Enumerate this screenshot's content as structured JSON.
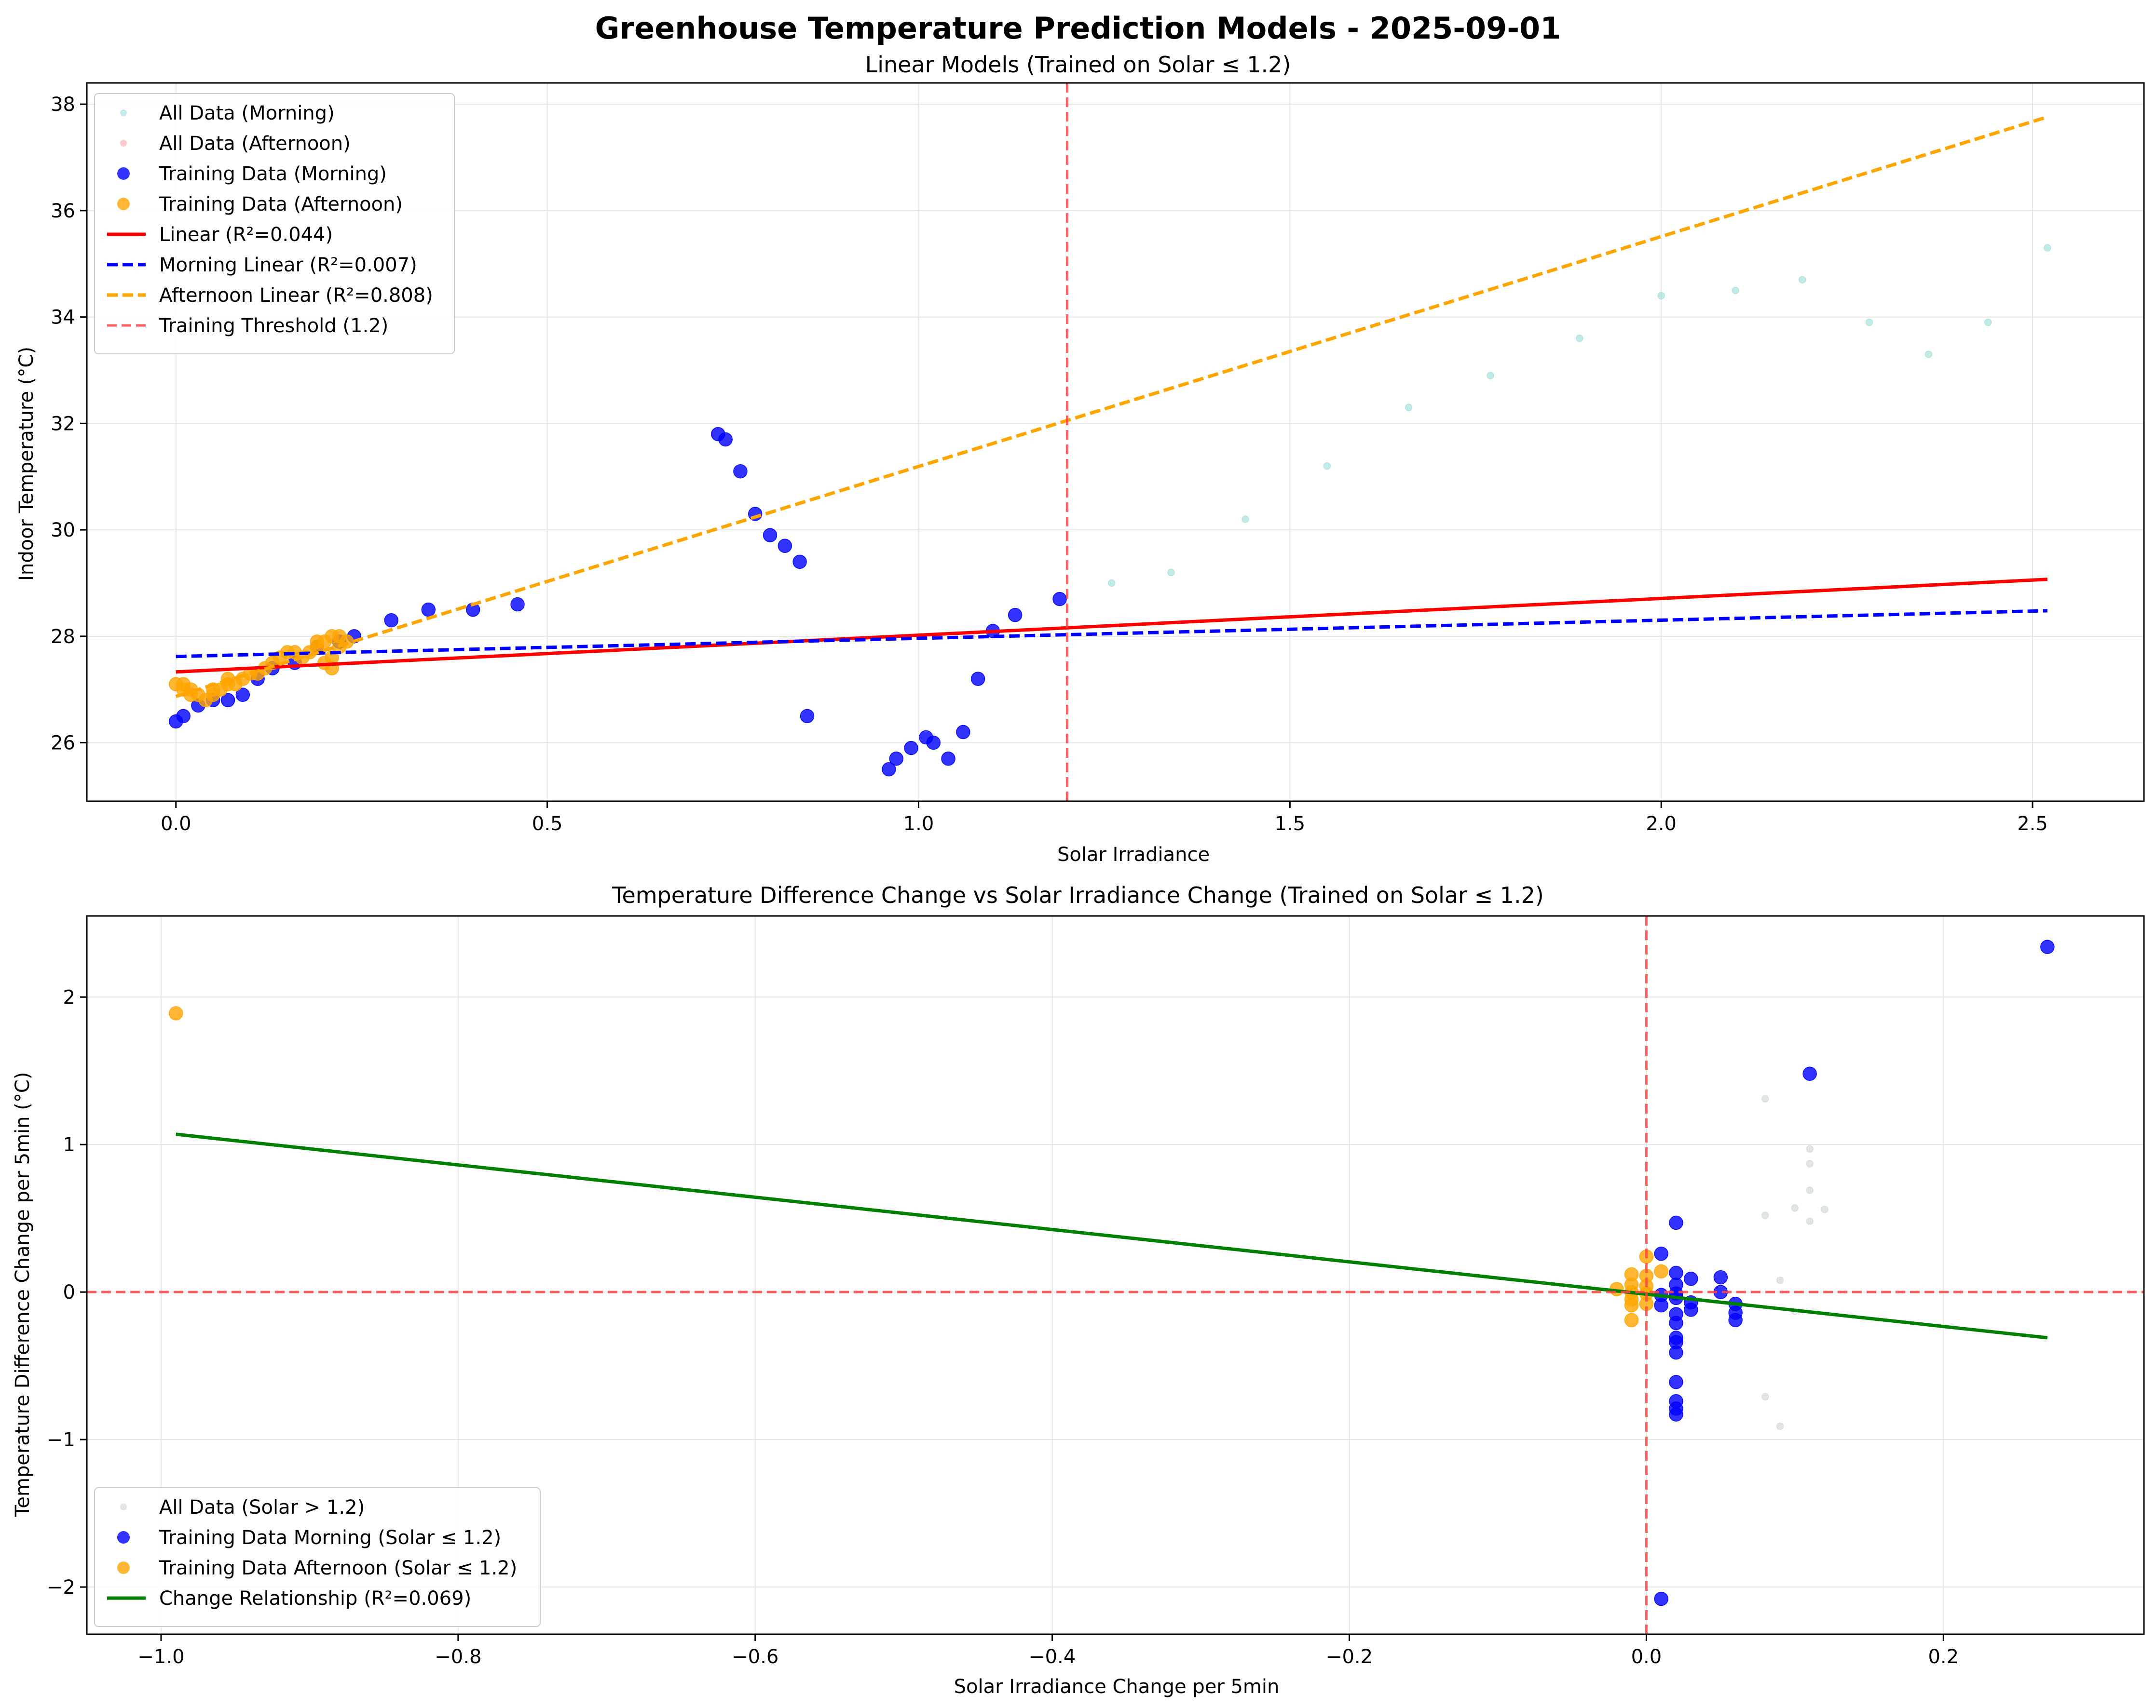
{
  "figure": {
    "title": "Greenhouse Temperature Prediction Models - 2025-09-01"
  },
  "colors": {
    "morning_training": "#0000ff",
    "afternoon_training": "#ffa500",
    "morning_all": "#8fd8d2",
    "afternoon_all": "#f0a0a0",
    "all_solar_gt": "#c8d0d0",
    "linear": "#ff0000",
    "threshold": "#ff4444",
    "change_fit": "#008000",
    "grid": "#e6e6e6"
  },
  "chart_data": [
    {
      "type": "scatter",
      "title": "Linear Models (Trained on Solar ≤ 1.2)",
      "xlabel": "Solar Irradiance",
      "ylabel": "Indoor Temperature (°C)",
      "xlim": [
        -0.12,
        2.65
      ],
      "ylim": [
        24.9,
        38.4
      ],
      "xticks": [
        0.0,
        0.5,
        1.0,
        1.5,
        2.0,
        2.5
      ],
      "xtick_labels": [
        "0.0",
        "0.5",
        "1.0",
        "1.5",
        "2.0",
        "2.5"
      ],
      "yticks": [
        26,
        28,
        30,
        32,
        34,
        36,
        38
      ],
      "ytick_labels": [
        "26",
        "28",
        "30",
        "32",
        "34",
        "36",
        "38"
      ],
      "grid": true,
      "legend_position": "upper-left",
      "series": [
        {
          "name": "All Data (Morning)",
          "kind": "scatter-small",
          "color": "#8fd8d2",
          "points": [
            [
              1.26,
              29.0
            ],
            [
              1.34,
              29.2
            ],
            [
              1.44,
              30.2
            ],
            [
              1.55,
              31.2
            ],
            [
              1.66,
              32.3
            ],
            [
              1.77,
              32.9
            ],
            [
              1.89,
              33.6
            ],
            [
              2.0,
              34.4
            ],
            [
              2.1,
              34.5
            ],
            [
              2.19,
              34.7
            ],
            [
              2.28,
              33.9
            ],
            [
              2.36,
              33.3
            ],
            [
              2.44,
              33.9
            ],
            [
              2.52,
              35.3
            ]
          ]
        },
        {
          "name": "All Data (Afternoon)",
          "kind": "scatter-small",
          "color": "#f0a0a0",
          "points": []
        },
        {
          "name": "Training Data (Morning)",
          "kind": "scatter",
          "color": "#0000ff",
          "points": [
            [
              0.0,
              26.4
            ],
            [
              0.01,
              26.5
            ],
            [
              0.03,
              26.7
            ],
            [
              0.05,
              26.8
            ],
            [
              0.07,
              26.8
            ],
            [
              0.09,
              26.9
            ],
            [
              0.11,
              27.2
            ],
            [
              0.13,
              27.4
            ],
            [
              0.16,
              27.5
            ],
            [
              0.19,
              27.8
            ],
            [
              0.22,
              27.9
            ],
            [
              0.24,
              28.0
            ],
            [
              0.29,
              28.3
            ],
            [
              0.34,
              28.5
            ],
            [
              0.4,
              28.5
            ],
            [
              0.46,
              28.6
            ],
            [
              0.73,
              31.8
            ],
            [
              0.74,
              31.7
            ],
            [
              0.76,
              31.1
            ],
            [
              0.78,
              30.3
            ],
            [
              0.8,
              29.9
            ],
            [
              0.82,
              29.7
            ],
            [
              0.84,
              29.4
            ],
            [
              0.85,
              26.5
            ],
            [
              0.96,
              25.5
            ],
            [
              0.97,
              25.7
            ],
            [
              0.99,
              25.9
            ],
            [
              1.01,
              26.1
            ],
            [
              1.02,
              26.0
            ],
            [
              1.04,
              25.7
            ],
            [
              1.06,
              26.2
            ],
            [
              1.08,
              27.2
            ],
            [
              1.1,
              28.1
            ],
            [
              1.13,
              28.4
            ],
            [
              1.19,
              28.7
            ]
          ]
        },
        {
          "name": "Training Data (Afternoon)",
          "kind": "scatter",
          "color": "#ffa500",
          "points": [
            [
              0.0,
              27.1
            ],
            [
              0.01,
              27.1
            ],
            [
              0.01,
              27.0
            ],
            [
              0.02,
              27.0
            ],
            [
              0.02,
              26.9
            ],
            [
              0.03,
              26.9
            ],
            [
              0.04,
              26.8
            ],
            [
              0.05,
              26.9
            ],
            [
              0.05,
              27.0
            ],
            [
              0.06,
              27.0
            ],
            [
              0.07,
              27.1
            ],
            [
              0.07,
              27.2
            ],
            [
              0.08,
              27.1
            ],
            [
              0.09,
              27.2
            ],
            [
              0.1,
              27.3
            ],
            [
              0.11,
              27.3
            ],
            [
              0.12,
              27.4
            ],
            [
              0.13,
              27.5
            ],
            [
              0.14,
              27.6
            ],
            [
              0.15,
              27.7
            ],
            [
              0.16,
              27.7
            ],
            [
              0.17,
              27.6
            ],
            [
              0.18,
              27.7
            ],
            [
              0.19,
              27.8
            ],
            [
              0.19,
              27.9
            ],
            [
              0.2,
              27.9
            ],
            [
              0.2,
              27.5
            ],
            [
              0.21,
              27.4
            ],
            [
              0.21,
              27.6
            ],
            [
              0.21,
              28.0
            ],
            [
              0.22,
              27.8
            ],
            [
              0.22,
              28.0
            ],
            [
              0.23,
              27.9
            ]
          ]
        },
        {
          "name": "Linear (R²=0.044)",
          "kind": "line",
          "color": "#ff0000",
          "dash": "solid",
          "points": [
            [
              0.0,
              27.33
            ],
            [
              2.52,
              29.07
            ]
          ]
        },
        {
          "name": "Morning Linear (R²=0.007)",
          "kind": "line",
          "color": "#0000ff",
          "dash": "dashed",
          "points": [
            [
              0.0,
              27.62
            ],
            [
              2.52,
              28.48
            ]
          ]
        },
        {
          "name": "Afternoon Linear (R²=0.808)",
          "kind": "line",
          "color": "#ffa500",
          "dash": "dashed",
          "points": [
            [
              0.0,
              26.87
            ],
            [
              2.52,
              37.76
            ]
          ]
        },
        {
          "name": "Training Threshold (1.2)",
          "kind": "vline",
          "color": "#ff4444",
          "dash": "dashed",
          "x": 1.2
        }
      ]
    },
    {
      "type": "scatter",
      "title": "Temperature Difference Change vs Solar Irradiance Change (Trained on Solar ≤ 1.2)",
      "xlabel": "Solar Irradiance Change per 5min",
      "ylabel": "Temperature Difference Change per 5min (°C)",
      "xlim": [
        -1.05,
        0.335
      ],
      "ylim": [
        -2.32,
        2.55
      ],
      "xticks": [
        -1.0,
        -0.8,
        -0.6,
        -0.4,
        -0.2,
        0.0,
        0.2
      ],
      "xtick_labels": [
        "−1.0",
        "−0.8",
        "−0.6",
        "−0.4",
        "−0.2",
        "0.0",
        "0.2"
      ],
      "yticks": [
        -2,
        -1,
        0,
        1,
        2
      ],
      "ytick_labels": [
        "−2",
        "−1",
        "0",
        "1",
        "2"
      ],
      "grid": true,
      "legend_position": "lower-left",
      "series": [
        {
          "name": "All Data (Solar > 1.2)",
          "kind": "scatter-small",
          "color": "#c8d0d0",
          "points": [
            [
              0.08,
              1.31
            ],
            [
              0.11,
              0.97
            ],
            [
              0.11,
              0.87
            ],
            [
              0.11,
              0.69
            ],
            [
              0.1,
              0.57
            ],
            [
              0.12,
              0.56
            ],
            [
              0.08,
              0.52
            ],
            [
              0.11,
              0.48
            ],
            [
              0.09,
              0.08
            ],
            [
              0.1,
              -0.13
            ],
            [
              0.08,
              -0.71
            ],
            [
              0.09,
              -0.91
            ]
          ]
        },
        {
          "name": "Training Data Morning (Solar ≤ 1.2)",
          "kind": "scatter",
          "color": "#0000ff",
          "points": [
            [
              0.27,
              2.34
            ],
            [
              0.11,
              1.48
            ],
            [
              0.02,
              0.47
            ],
            [
              0.01,
              0.26
            ],
            [
              0.02,
              0.13
            ],
            [
              0.03,
              0.09
            ],
            [
              0.05,
              0.1
            ],
            [
              0.02,
              0.05
            ],
            [
              0.05,
              0.0
            ],
            [
              0.01,
              -0.02
            ],
            [
              0.02,
              -0.04
            ],
            [
              0.03,
              -0.07
            ],
            [
              0.06,
              -0.08
            ],
            [
              0.03,
              -0.12
            ],
            [
              0.06,
              -0.14
            ],
            [
              0.02,
              -0.15
            ],
            [
              0.06,
              -0.19
            ],
            [
              0.02,
              -0.21
            ],
            [
              0.02,
              -0.31
            ],
            [
              0.02,
              -0.34
            ],
            [
              0.02,
              -0.41
            ],
            [
              0.02,
              -0.61
            ],
            [
              0.02,
              -0.74
            ],
            [
              0.02,
              -0.79
            ],
            [
              0.02,
              -0.83
            ],
            [
              0.01,
              -2.08
            ],
            [
              0.01,
              -0.09
            ],
            [
              0.02,
              -0.01
            ]
          ]
        },
        {
          "name": "Training Data Afternoon (Solar ≤ 1.2)",
          "kind": "scatter",
          "color": "#ffa500",
          "points": [
            [
              -0.99,
              1.89
            ],
            [
              0.0,
              0.24
            ],
            [
              0.01,
              0.14
            ],
            [
              -0.01,
              0.12
            ],
            [
              0.0,
              0.11
            ],
            [
              -0.01,
              0.05
            ],
            [
              0.0,
              0.04
            ],
            [
              -0.02,
              0.02
            ],
            [
              -0.01,
              0.0
            ],
            [
              0.0,
              -0.01
            ],
            [
              -0.01,
              -0.05
            ],
            [
              0.0,
              -0.08
            ],
            [
              -0.01,
              -0.09
            ],
            [
              -0.01,
              -0.19
            ]
          ]
        },
        {
          "name": "Change Relationship (R²=0.069)",
          "kind": "line",
          "color": "#008000",
          "dash": "solid",
          "points": [
            [
              -0.99,
              1.07
            ],
            [
              0.27,
              -0.31
            ]
          ]
        },
        {
          "name": "",
          "kind": "hline",
          "color": "#ff4444",
          "dash": "dashed",
          "y": 0
        },
        {
          "name": "",
          "kind": "vline",
          "color": "#ff4444",
          "dash": "dashed",
          "x": 0
        }
      ]
    }
  ]
}
